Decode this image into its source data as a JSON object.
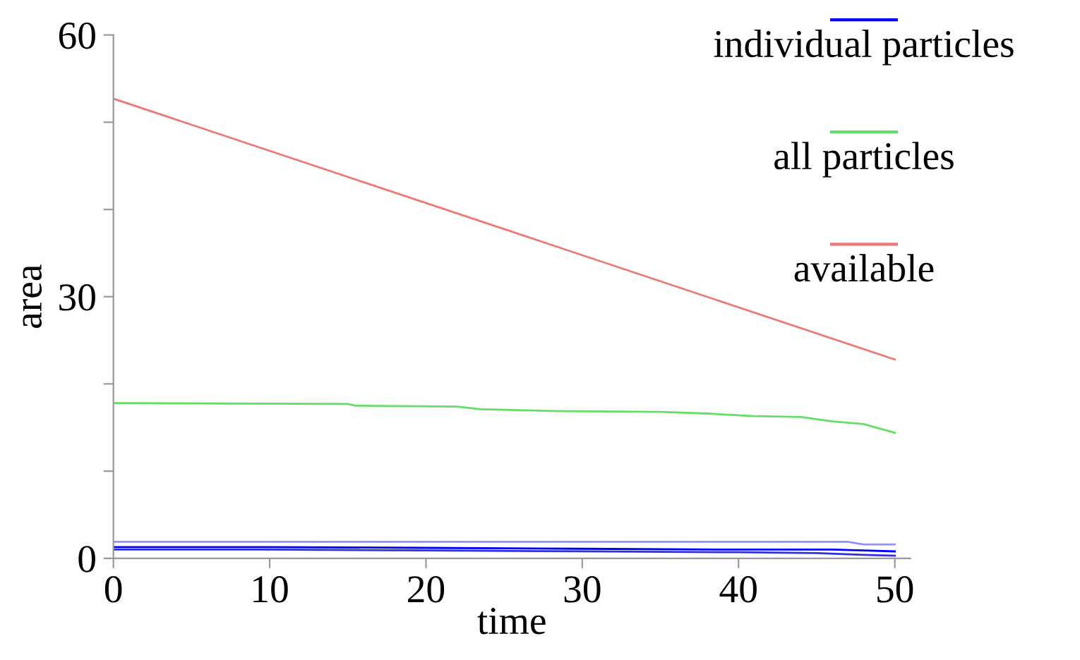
{
  "chart_data": {
    "type": "line",
    "xlabel": "time",
    "ylabel": "area",
    "xlim": [
      0,
      51
    ],
    "ylim": [
      0,
      60
    ],
    "xticks": [
      0,
      10,
      20,
      30,
      40,
      50
    ],
    "yticks": [
      0,
      {
        "value": 10,
        "label": null
      },
      {
        "value": 20,
        "label": null
      },
      30,
      {
        "value": 40,
        "label": null
      },
      {
        "value": 50,
        "label": null
      },
      60
    ],
    "grid": false,
    "legend": "top right",
    "marker": "none",
    "line_style": "solid",
    "series": [
      {
        "name": "individual particles",
        "color": "#0000ff",
        "x": [
          0,
          10,
          20,
          30,
          40,
          46,
          48,
          50
        ],
        "values": [
          1.3,
          1.3,
          1.2,
          1.1,
          1.0,
          1.0,
          0.9,
          0.8
        ]
      },
      {
        "color": "#9090ff",
        "x": [
          0,
          10,
          20,
          30,
          40,
          47,
          48,
          50
        ],
        "values": [
          1.9,
          1.9,
          1.9,
          1.9,
          1.9,
          1.9,
          1.6,
          1.6
        ]
      },
      {
        "color": "#3030e0",
        "x": [
          0,
          10,
          20,
          30,
          40,
          45,
          48,
          50
        ],
        "values": [
          1.0,
          1.0,
          0.9,
          0.8,
          0.7,
          0.6,
          0.4,
          0.3
        ]
      },
      {
        "name": "all particles",
        "color": "#66dd66",
        "x": [
          0,
          15,
          15.5,
          22,
          23.5,
          28,
          35,
          38,
          41,
          44,
          46,
          48,
          50
        ],
        "values": [
          17.8,
          17.7,
          17.5,
          17.4,
          17.1,
          16.9,
          16.8,
          16.6,
          16.3,
          16.2,
          15.7,
          15.4,
          14.4
        ]
      },
      {
        "name": "available",
        "color": "#ee7777",
        "x": [
          0,
          50
        ],
        "values": [
          52.7,
          22.8
        ]
      }
    ]
  }
}
